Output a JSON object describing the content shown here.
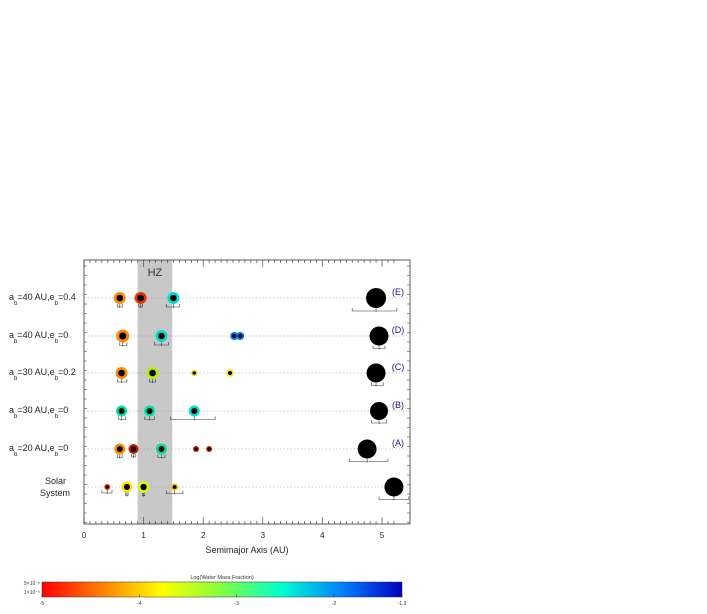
{
  "chart_data": {
    "type": "scatter",
    "xlabel": "Semimajor Axis (AU)",
    "xlim": [
      0,
      5.25
    ],
    "xticks": [
      0,
      1,
      2,
      3,
      4,
      5
    ],
    "hz_label": "HZ",
    "hz_range": [
      0.9,
      1.48
    ],
    "rows": [
      {
        "id": "E",
        "case_label": "(E)",
        "label": {
          "a": "a",
          "asub": "b",
          "mid": "=40 AU,e",
          "esub": "b",
          "end": "=0.4"
        },
        "planets": [
          {
            "a": 0.6,
            "size": 1.6,
            "color": "#ff8a00",
            "err": [
              0.56,
              0.64
            ]
          },
          {
            "a": 0.95,
            "size": 1.6,
            "color": "#e43500",
            "err": [
              0.92,
              0.98
            ]
          },
          {
            "a": 1.5,
            "size": 1.6,
            "color": "#00e0d0",
            "err": [
              1.38,
              1.6
            ]
          },
          {
            "a": 4.9,
            "size": 3.2,
            "color": "#000000",
            "err": [
              4.5,
              5.25
            ]
          }
        ]
      },
      {
        "id": "D",
        "case_label": "(D)",
        "label": {
          "a": "a",
          "asub": "b",
          "mid": "=40 AU,e",
          "esub": "b",
          "end": "=0"
        },
        "planets": [
          {
            "a": 0.65,
            "size": 1.8,
            "color": "#ff8a00",
            "err": [
              0.6,
              0.72
            ]
          },
          {
            "a": 1.3,
            "size": 1.6,
            "color": "#00e0d0",
            "err": [
              1.18,
              1.42
            ]
          },
          {
            "a": 2.52,
            "size": 0.8,
            "color": "#0078ff",
            "err": null
          },
          {
            "a": 2.62,
            "size": 0.8,
            "color": "#0078ff",
            "err": null
          },
          {
            "a": 4.95,
            "size": 3.0,
            "color": "#000000",
            "err": [
              4.85,
              5.05
            ]
          }
        ]
      },
      {
        "id": "C",
        "case_label": "(C)",
        "label": {
          "a": "a",
          "asub": "b",
          "mid": "=30 AU,e",
          "esub": "b",
          "end": "=0.2"
        },
        "planets": [
          {
            "a": 0.63,
            "size": 1.6,
            "color": "#ff8a00",
            "err": [
              0.56,
              0.72
            ]
          },
          {
            "a": 1.15,
            "size": 1.6,
            "color": "#b0f000",
            "err": [
              1.1,
              1.2
            ]
          },
          {
            "a": 1.85,
            "size": 0.4,
            "color": "#f0d000",
            "err": null
          },
          {
            "a": 2.45,
            "size": 0.7,
            "color": "#ffe000",
            "err": null
          },
          {
            "a": 4.9,
            "size": 3.0,
            "color": "#000000",
            "err": [
              4.82,
              5.02
            ]
          }
        ]
      },
      {
        "id": "B",
        "case_label": "(B)",
        "label": {
          "a": "a",
          "asub": "b",
          "mid": "=30 AU,e",
          "esub": "b",
          "end": "=0"
        },
        "planets": [
          {
            "a": 0.63,
            "size": 1.4,
            "color": "#00e0a0",
            "err": [
              0.58,
              0.7
            ]
          },
          {
            "a": 1.1,
            "size": 1.4,
            "color": "#00e0a0",
            "err": [
              1.02,
              1.18
            ]
          },
          {
            "a": 1.85,
            "size": 1.4,
            "color": "#00e0d0",
            "err": [
              1.45,
              2.2
            ]
          },
          {
            "a": 4.95,
            "size": 2.8,
            "color": "#000000",
            "err": [
              4.82,
              5.08
            ]
          }
        ]
      },
      {
        "id": "A",
        "case_label": "(A)",
        "label": {
          "a": "a",
          "asub": "b",
          "mid": "=20 AU,e",
          "esub": "b",
          "end": "=0"
        },
        "planets": [
          {
            "a": 0.6,
            "size": 1.4,
            "color": "#ff8a00",
            "err": [
              0.56,
              0.64
            ]
          },
          {
            "a": 0.83,
            "size": 1.2,
            "color": "#c02000",
            "err": [
              0.8,
              0.86
            ]
          },
          {
            "a": 1.3,
            "size": 1.4,
            "color": "#00e0a0",
            "err": [
              1.24,
              1.36
            ]
          },
          {
            "a": 1.88,
            "size": 0.4,
            "color": "#c02000",
            "err": null
          },
          {
            "a": 2.1,
            "size": 0.4,
            "color": "#c02000",
            "err": null
          },
          {
            "a": 4.75,
            "size": 3.0,
            "color": "#000000",
            "err": [
              4.45,
              5.1
            ]
          }
        ]
      },
      {
        "id": "SS",
        "case_label": "",
        "label": {
          "line1": "Solar",
          "line2": "System"
        },
        "planets": [
          {
            "a": 0.39,
            "size": 0.4,
            "color": "#e04000",
            "err": [
              0.3,
              0.47
            ]
          },
          {
            "a": 0.72,
            "size": 1.4,
            "color": "#ffe000",
            "err": [
              0.7,
              0.74
            ]
          },
          {
            "a": 1.0,
            "size": 1.5,
            "color": "#d8ff00",
            "err": [
              0.98,
              1.02
            ]
          },
          {
            "a": 1.52,
            "size": 0.6,
            "color": "#ffc000",
            "err": [
              1.38,
              1.66
            ]
          },
          {
            "a": 5.2,
            "size": 3.0,
            "color": "#000000",
            "err": [
              4.95,
              5.45
            ]
          }
        ]
      }
    ],
    "colorbar": {
      "title": "Log(Water Mass Fraction)",
      "ticks": [
        "-5",
        "-4",
        "-3",
        "-2",
        "-1.3"
      ],
      "left_notes": [
        "5×10⁻⁵",
        "1×10⁻⁵"
      ],
      "colors": [
        "#ff0000",
        "#ff8000",
        "#ffff00",
        "#80ff40",
        "#00ffd0",
        "#0080ff",
        "#0000c0"
      ]
    }
  }
}
